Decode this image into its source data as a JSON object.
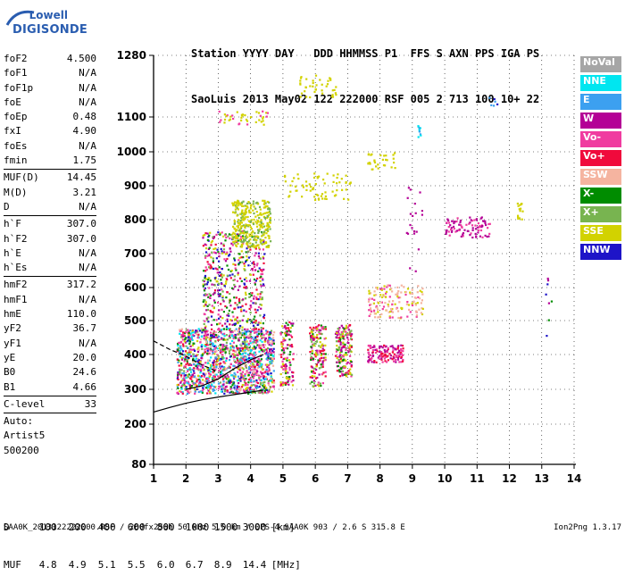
{
  "logo": {
    "line1": "Lowell",
    "line2": "DIGISONDE"
  },
  "header": {
    "labels": [
      "Station",
      "YYYY",
      "DAY",
      "DDD",
      "HHMMSS",
      "P1",
      "FFS",
      "S",
      "AXN",
      "PPS",
      "IGA",
      "PS"
    ],
    "values": [
      "SaoLuis",
      "2013",
      "May02",
      "122",
      "222000",
      "RSF",
      "005",
      "2",
      "713",
      "100",
      "10+",
      "22"
    ]
  },
  "params": {
    "group1": [
      {
        "name": "foF2",
        "value": "4.500"
      },
      {
        "name": "foF1",
        "value": "N/A"
      },
      {
        "name": "foF1p",
        "value": "N/A"
      },
      {
        "name": "foE",
        "value": "N/A"
      },
      {
        "name": "foEp",
        "value": "0.48"
      },
      {
        "name": "fxI",
        "value": "4.90"
      },
      {
        "name": "foEs",
        "value": "N/A"
      },
      {
        "name": "fmin",
        "value": "1.75"
      }
    ],
    "group2": [
      {
        "name": "MUF(D)",
        "value": "14.45"
      },
      {
        "name": "M(D)",
        "value": "3.21"
      },
      {
        "name": "D",
        "value": "N/A"
      }
    ],
    "group3": [
      {
        "name": "h`F",
        "value": "307.0"
      },
      {
        "name": "h`F2",
        "value": "307.0"
      },
      {
        "name": "h`E",
        "value": "N/A"
      },
      {
        "name": "h`Es",
        "value": "N/A"
      }
    ],
    "group4": [
      {
        "name": "hmF2",
        "value": "317.2"
      },
      {
        "name": "hmF1",
        "value": "N/A"
      },
      {
        "name": "hmE",
        "value": "110.0"
      },
      {
        "name": "yF2",
        "value": "36.7"
      },
      {
        "name": "yF1",
        "value": "N/A"
      },
      {
        "name": "yE",
        "value": "20.0"
      },
      {
        "name": "B0",
        "value": "24.6"
      },
      {
        "name": "B1",
        "value": "4.66"
      }
    ],
    "group5": [
      {
        "name": "C-level",
        "value": "33"
      }
    ],
    "autoscaling": [
      "Auto:",
      "Artist5",
      "500200"
    ]
  },
  "legend": [
    {
      "label": "NoVal",
      "color": "#a6a6a6"
    },
    {
      "label": "NNE",
      "color": "#00e6f0"
    },
    {
      "label": "E",
      "color": "#3ca0f0"
    },
    {
      "label": "W",
      "color": "#b40096"
    },
    {
      "label": "Vo-",
      "color": "#f03ca0"
    },
    {
      "label": "Vo+",
      "color": "#f00a3c"
    },
    {
      "label": "SSW",
      "color": "#f5b4a0"
    },
    {
      "label": "X-",
      "color": "#008c00"
    },
    {
      "label": "X+",
      "color": "#78b450"
    },
    {
      "label": "SSE",
      "color": "#d2d200"
    },
    {
      "label": "NNW",
      "color": "#1e14c8"
    }
  ],
  "mufTable": {
    "dLabel": "D",
    "mufLabel": "MUF",
    "d": [
      "100",
      "200",
      "400",
      "600",
      "800",
      "1000",
      "1500",
      "3000"
    ],
    "dUnit": "[km]",
    "muf": [
      "4.8",
      "4.9",
      "5.1",
      "5.5",
      "6.0",
      "6.7",
      "8.9",
      "14.4"
    ],
    "mufUnit": "[MHz]"
  },
  "footer": {
    "left": "SAA0K_2013122222000.RSF / 260fx256h 50 kHz 5.0 km / DPS-4 SAA0K 903 / 2.6 S 315.8 E",
    "right": "Ion2Png 1.3.17"
  },
  "chart_data": {
    "type": "scatter",
    "x_ticks": [
      1,
      2,
      3,
      4,
      5,
      6,
      7,
      8,
      9,
      10,
      11,
      12,
      13,
      14
    ],
    "y_ticks": [
      80,
      200,
      300,
      400,
      500,
      600,
      700,
      800,
      900,
      1000,
      1100,
      1280
    ],
    "xlim": [
      1,
      14
    ],
    "ylim": [
      80,
      1280
    ],
    "grid": true,
    "profile_curve": [
      [
        1,
        235
      ],
      [
        1.5,
        248
      ],
      [
        2,
        260
      ],
      [
        2.5,
        270
      ],
      [
        3,
        278
      ],
      [
        3.5,
        285
      ],
      [
        4,
        292
      ],
      [
        4.4,
        298
      ]
    ],
    "trace_curve": [
      [
        2,
        300
      ],
      [
        2.5,
        310
      ],
      [
        3,
        330
      ],
      [
        3.5,
        360
      ],
      [
        4,
        385
      ],
      [
        4.4,
        400
      ]
    ],
    "dashed_curve": [
      [
        1,
        440
      ],
      [
        1.5,
        415
      ],
      [
        2,
        395
      ],
      [
        2.5,
        370
      ],
      [
        3,
        350
      ]
    ],
    "clusters": [
      {
        "x": [
          1.7,
          4.7
        ],
        "y": [
          290,
          480
        ],
        "n": 1400,
        "colors": [
          "#f03ca0",
          "#f03ca0",
          "#f00a3c",
          "#008c00",
          "#d2d200",
          "#b40096",
          "#78b450",
          "#1e14c8",
          "#f5b4a0",
          "#00e6f0",
          "#3ca0f0"
        ]
      },
      {
        "x": [
          2.5,
          4.4
        ],
        "y": [
          480,
          770
        ],
        "n": 500,
        "colors": [
          "#f03ca0",
          "#f00a3c",
          "#008c00",
          "#d2d200",
          "#b40096",
          "#78b450",
          "#1e14c8"
        ]
      },
      {
        "x": [
          3.4,
          4.6
        ],
        "y": [
          720,
          860
        ],
        "n": 320,
        "colors": [
          "#d2d200",
          "#d2d200",
          "#d2d200",
          "#78b450"
        ]
      },
      {
        "x": [
          4.9,
          5.3
        ],
        "y": [
          310,
          500
        ],
        "n": 120,
        "colors": [
          "#008c00",
          "#f03ca0",
          "#d2d200",
          "#f00a3c",
          "#b40096"
        ]
      },
      {
        "x": [
          5.8,
          6.3
        ],
        "y": [
          310,
          490
        ],
        "n": 160,
        "colors": [
          "#008c00",
          "#f03ca0",
          "#d2d200",
          "#f00a3c",
          "#b40096",
          "#78b450"
        ]
      },
      {
        "x": [
          6.6,
          7.1
        ],
        "y": [
          340,
          490
        ],
        "n": 180,
        "colors": [
          "#008c00",
          "#f03ca0",
          "#d2d200",
          "#f00a3c",
          "#b40096",
          "#78b450"
        ]
      },
      {
        "x": [
          7.6,
          8.7
        ],
        "y": [
          380,
          430
        ],
        "n": 130,
        "colors": [
          "#f03ca0",
          "#f00a3c",
          "#b40096"
        ]
      },
      {
        "x": [
          7.6,
          9.3
        ],
        "y": [
          510,
          610
        ],
        "n": 150,
        "colors": [
          "#f5b4a0",
          "#f5b4a0",
          "#f03ca0",
          "#d2d200"
        ]
      },
      {
        "x": [
          10,
          11.4
        ],
        "y": [
          750,
          810
        ],
        "n": 90,
        "colors": [
          "#b40096",
          "#b40096",
          "#f03ca0"
        ]
      },
      {
        "x": [
          5,
          7.1
        ],
        "y": [
          860,
          940
        ],
        "n": 70,
        "colors": [
          "#d2d200"
        ]
      },
      {
        "x": [
          7.6,
          8.5
        ],
        "y": [
          950,
          1000
        ],
        "n": 30,
        "colors": [
          "#d2d200"
        ]
      },
      {
        "x": [
          3,
          4.5
        ],
        "y": [
          1080,
          1120
        ],
        "n": 40,
        "colors": [
          "#d2d200",
          "#d2d200",
          "#f03ca0"
        ]
      },
      {
        "x": [
          5.4,
          6.7
        ],
        "y": [
          1160,
          1225
        ],
        "n": 40,
        "colors": [
          "#d2d200"
        ]
      },
      {
        "x": [
          12.2,
          12.4
        ],
        "y": [
          800,
          860
        ],
        "n": 15,
        "colors": [
          "#d2d200"
        ]
      },
      {
        "x": [
          8.8,
          9.3
        ],
        "y": [
          640,
          900
        ],
        "n": 20,
        "colors": [
          "#b40096"
        ]
      },
      {
        "x": [
          9.1,
          9.3
        ],
        "y": [
          1040,
          1080
        ],
        "n": 10,
        "colors": [
          "#3ca0f0",
          "#00e6f0"
        ]
      },
      {
        "x": [
          11.3,
          11.6
        ],
        "y": [
          1130,
          1160
        ],
        "n": 6,
        "colors": [
          "#3ca0f0",
          "#1e14c8"
        ]
      },
      {
        "x": [
          13.1,
          13.3
        ],
        "y": [
          390,
          640
        ],
        "n": 8,
        "colors": [
          "#008c00",
          "#1e14c8",
          "#b40096"
        ]
      }
    ]
  }
}
